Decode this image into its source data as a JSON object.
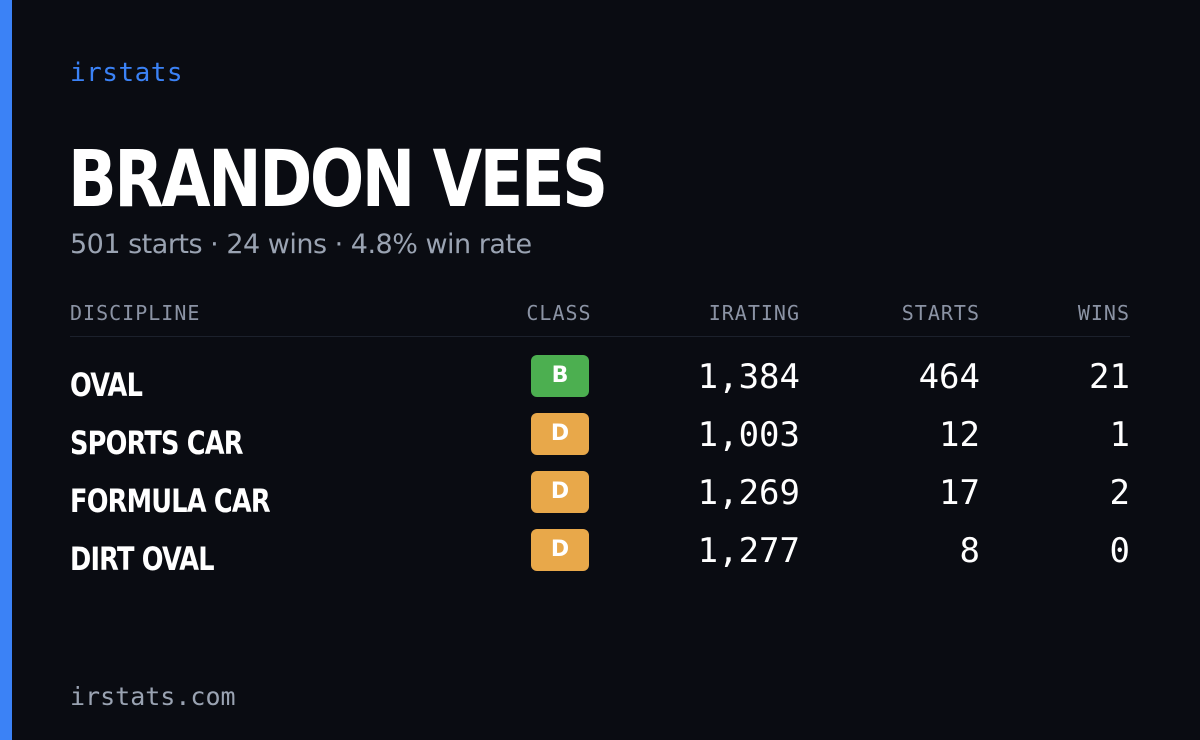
{
  "brand": "irstats",
  "driver": {
    "name": "BRANDON VEES",
    "summary": "501 starts · 24 wins · 4.8% win rate"
  },
  "table": {
    "headers": {
      "discipline": "DISCIPLINE",
      "class": "CLASS",
      "irating": "IRATING",
      "starts": "STARTS",
      "wins": "WINS"
    },
    "rows": [
      {
        "discipline": "OVAL",
        "class": "B",
        "class_color": "#4caf50",
        "irating": "1,384",
        "starts": "464",
        "wins": "21"
      },
      {
        "discipline": "SPORTS CAR",
        "class": "D",
        "class_color": "#e8a84a",
        "irating": "1,003",
        "starts": "12",
        "wins": "1"
      },
      {
        "discipline": "FORMULA CAR",
        "class": "D",
        "class_color": "#e8a84a",
        "irating": "1,269",
        "starts": "17",
        "wins": "2"
      },
      {
        "discipline": "DIRT OVAL",
        "class": "D",
        "class_color": "#e8a84a",
        "irating": "1,277",
        "starts": "8",
        "wins": "0"
      }
    ]
  },
  "footer": "irstats.com",
  "colors": {
    "accent": "#3b82f6",
    "background": "#0a0c12",
    "muted_text": "#9aa3b2"
  }
}
